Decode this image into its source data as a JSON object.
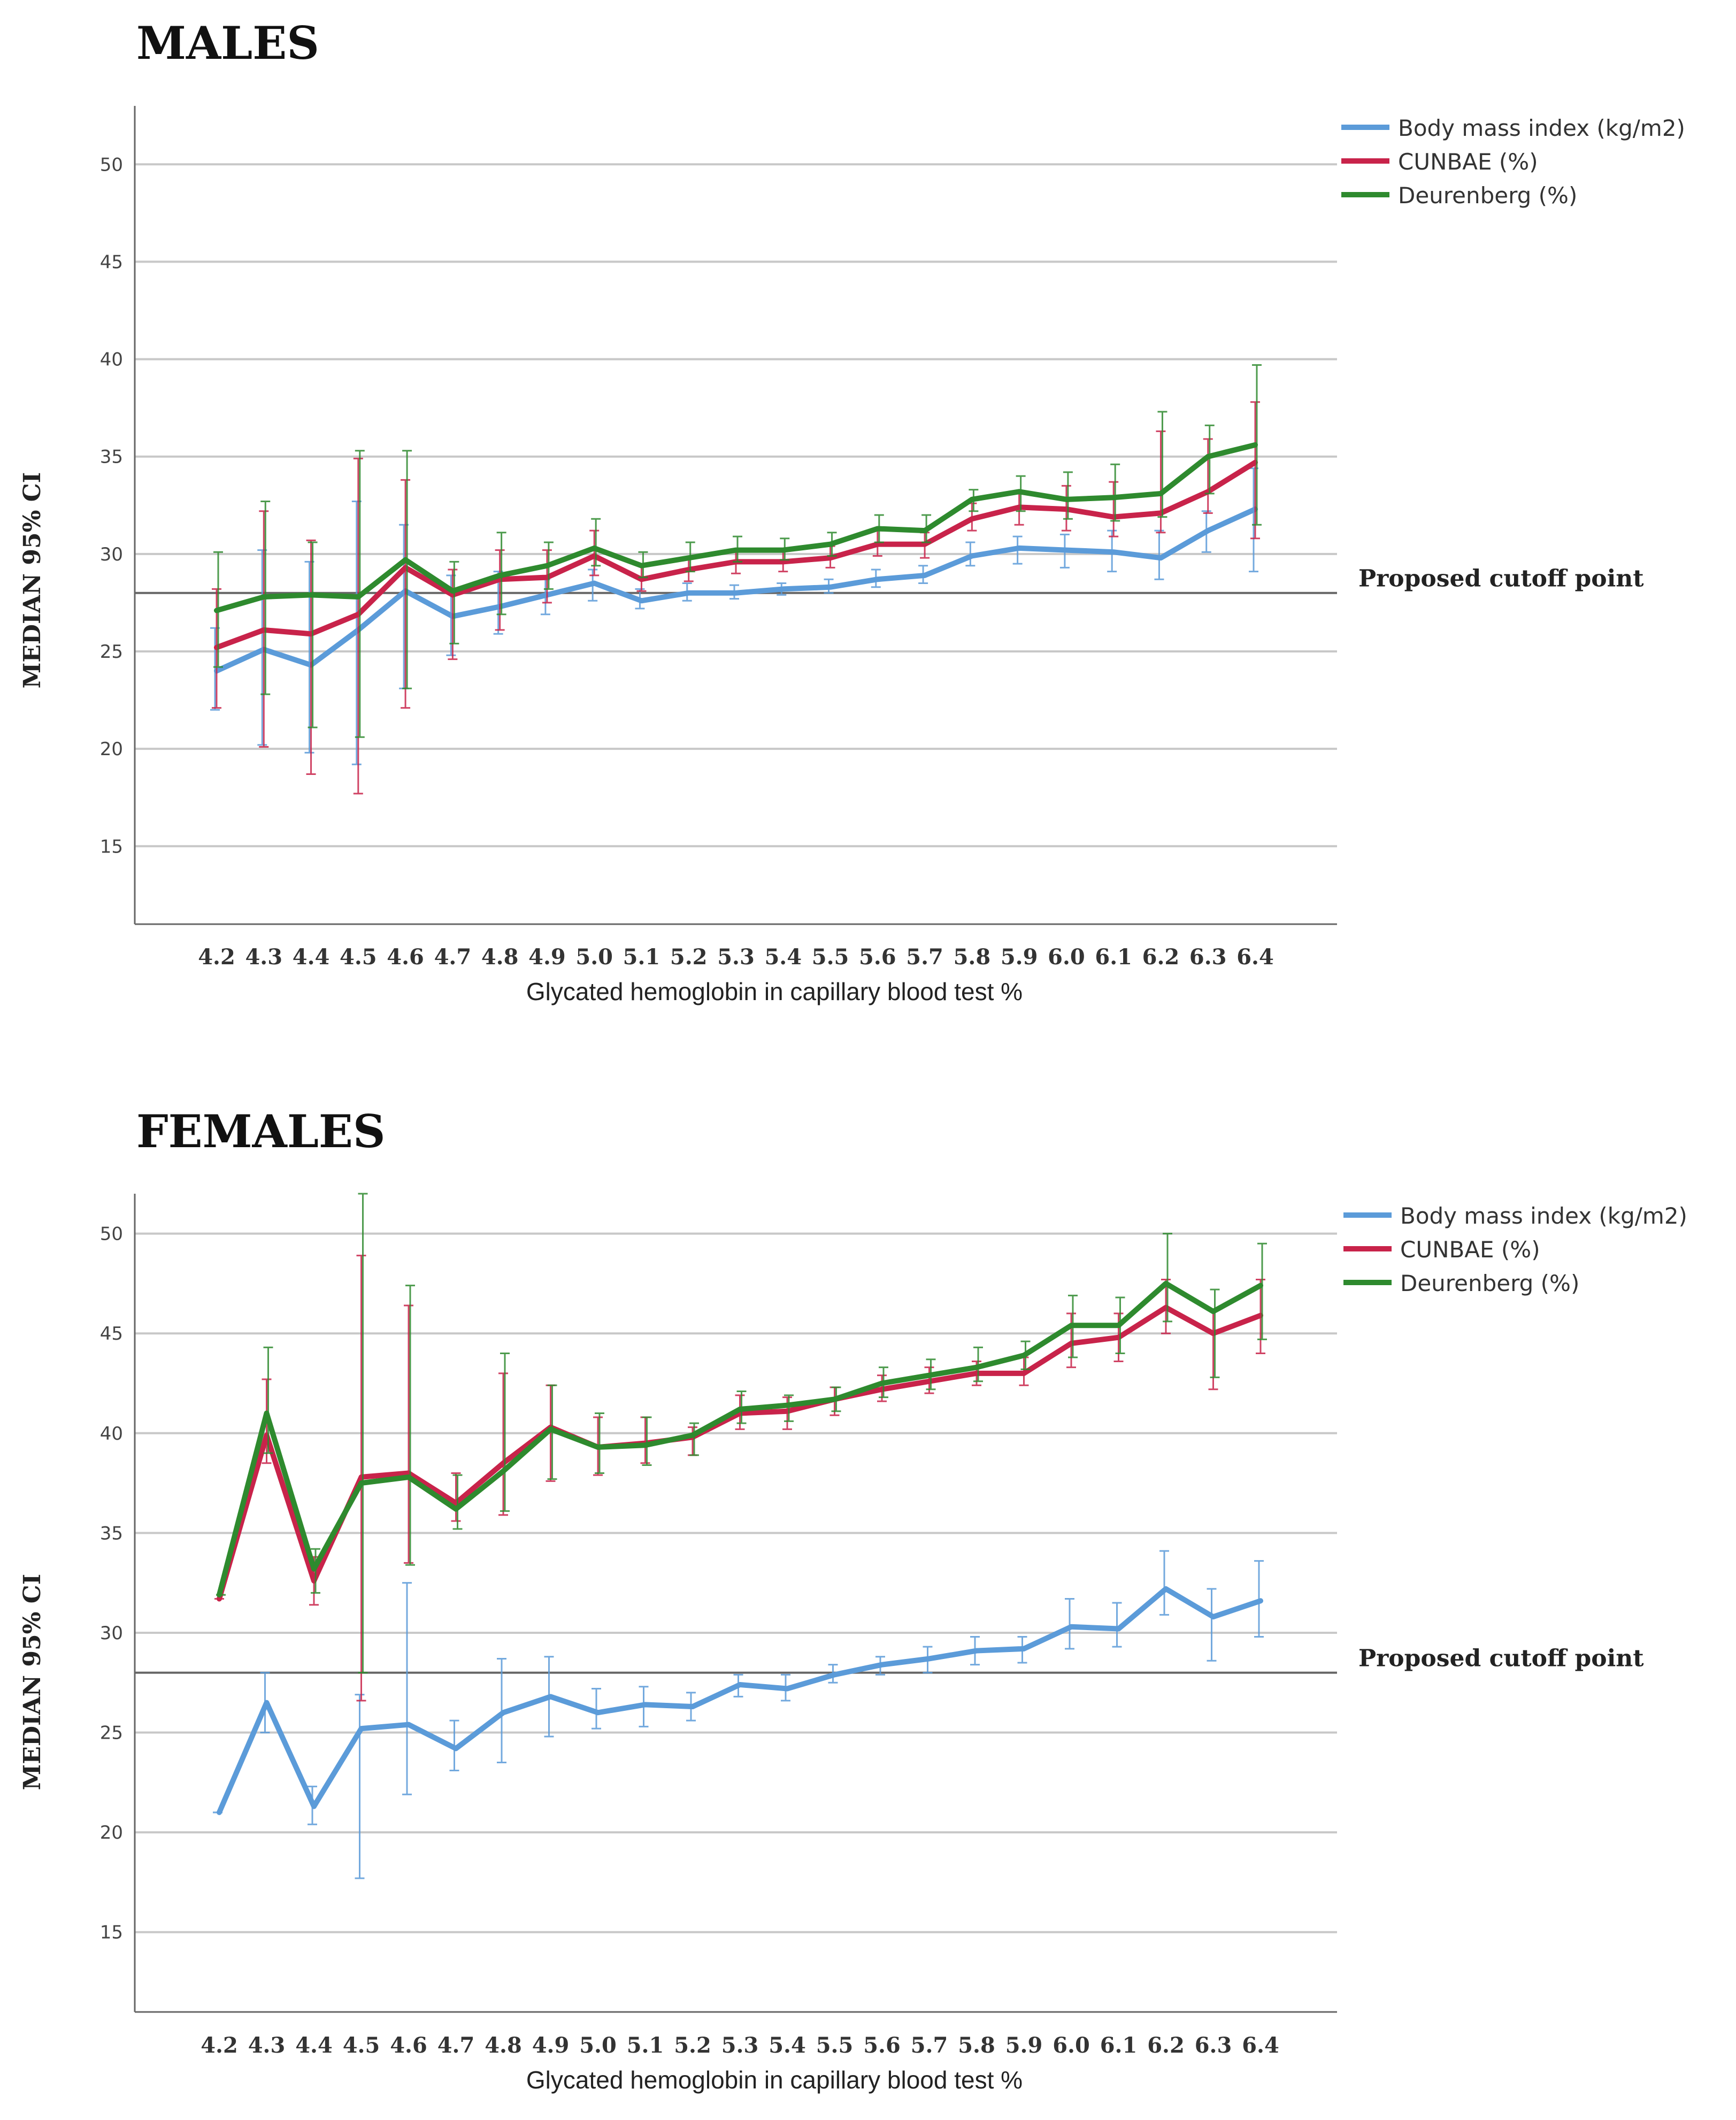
{
  "chart_data": [
    {
      "type": "line",
      "title": "MALES",
      "xlabel": "Glycated hemoglobin in capillary blood test %",
      "ylabel": "MEDIAN 95% CI",
      "ylim": [
        11,
        53
      ],
      "yticks": [
        15,
        20,
        25,
        30,
        35,
        40,
        45,
        50
      ],
      "legend_position": "top-right",
      "x": [
        "4.2",
        "4.3",
        "4.4",
        "4.5",
        "4.6",
        "4.7",
        "4.8",
        "4.9",
        "5.0",
        "5.1",
        "5.2",
        "5.3",
        "5.4",
        "5.5",
        "5.6",
        "5.7",
        "5.8",
        "5.9",
        "6.0",
        "6.1",
        "6.2",
        "6.3",
        "6.4"
      ],
      "cutoff": {
        "value": 28,
        "label": "Proposed cutoff point"
      },
      "series": [
        {
          "name": "Body mass index (kg/m2)",
          "color": "#5b9bd9",
          "values": [
            24.0,
            25.1,
            24.3,
            26.1,
            28.1,
            26.8,
            27.3,
            27.9,
            28.5,
            27.6,
            28.0,
            28.0,
            28.2,
            28.3,
            28.7,
            28.9,
            29.9,
            30.3,
            30.2,
            30.1,
            29.8,
            31.2,
            32.3
          ],
          "lower": [
            22.0,
            20.2,
            19.8,
            19.2,
            23.1,
            24.8,
            25.9,
            26.9,
            27.6,
            27.2,
            27.6,
            27.7,
            27.9,
            28.0,
            28.3,
            28.5,
            29.4,
            29.5,
            29.3,
            29.1,
            28.7,
            30.1,
            29.1
          ],
          "upper": [
            26.2,
            30.2,
            29.6,
            32.7,
            31.5,
            28.9,
            29.1,
            28.7,
            29.2,
            28.2,
            28.5,
            28.4,
            28.5,
            28.7,
            29.2,
            29.4,
            30.6,
            30.9,
            31.0,
            31.2,
            31.2,
            32.2,
            34.4
          ]
        },
        {
          "name": "CUNBAE (%)",
          "color": "#c8234a",
          "values": [
            25.2,
            26.1,
            25.9,
            26.9,
            29.3,
            27.9,
            28.7,
            28.8,
            29.9,
            28.7,
            29.2,
            29.6,
            29.6,
            29.8,
            30.5,
            30.5,
            31.8,
            32.4,
            32.3,
            31.9,
            32.1,
            33.2,
            34.7
          ],
          "lower": [
            22.1,
            20.1,
            18.7,
            17.7,
            22.1,
            24.6,
            26.1,
            27.5,
            28.9,
            28.1,
            28.6,
            29.0,
            29.1,
            29.3,
            29.9,
            29.8,
            31.2,
            31.5,
            31.2,
            30.9,
            31.1,
            32.1,
            30.8
          ],
          "upper": [
            28.2,
            32.2,
            30.7,
            34.9,
            33.8,
            29.2,
            30.2,
            30.2,
            31.2,
            29.4,
            29.8,
            30.2,
            30.2,
            30.4,
            31.2,
            31.1,
            32.6,
            33.2,
            33.5,
            33.7,
            36.3,
            35.9,
            37.8
          ]
        },
        {
          "name": "Deurenberg (%)",
          "color": "#2e8a2e",
          "values": [
            27.1,
            27.8,
            27.9,
            27.8,
            29.7,
            28.1,
            28.9,
            29.4,
            30.3,
            29.4,
            29.8,
            30.2,
            30.2,
            30.5,
            31.3,
            31.2,
            32.8,
            33.2,
            32.8,
            32.9,
            33.1,
            35.0,
            35.6
          ],
          "lower": [
            24.2,
            22.8,
            21.1,
            20.6,
            23.1,
            25.4,
            26.9,
            28.2,
            29.4,
            28.8,
            29.1,
            29.6,
            29.7,
            29.9,
            30.6,
            30.6,
            32.2,
            32.2,
            31.8,
            31.7,
            31.9,
            33.1,
            31.5
          ],
          "upper": [
            30.1,
            32.7,
            30.6,
            35.3,
            35.3,
            29.6,
            31.1,
            30.6,
            31.8,
            30.1,
            30.6,
            30.9,
            30.8,
            31.1,
            32.0,
            32.0,
            33.3,
            34.0,
            34.2,
            34.6,
            37.3,
            36.6,
            39.7
          ]
        }
      ]
    },
    {
      "type": "line",
      "title": "FEMALES",
      "xlabel": "Glycated hemoglobin in capillary blood test %",
      "ylabel": "MEDIAN 95% CI",
      "ylim": [
        11,
        52
      ],
      "yticks": [
        15,
        20,
        25,
        30,
        35,
        40,
        45,
        50
      ],
      "legend_position": "top-right",
      "x": [
        "4.2",
        "4.3",
        "4.4",
        "4.5",
        "4.6",
        "4.7",
        "4.8",
        "4.9",
        "5.0",
        "5.1",
        "5.2",
        "5.3",
        "5.4",
        "5.5",
        "5.6",
        "5.7",
        "5.8",
        "5.9",
        "6.0",
        "6.1",
        "6.2",
        "6.3",
        "6.4"
      ],
      "cutoff": {
        "value": 28,
        "label": "Proposed cutoff point"
      },
      "series": [
        {
          "name": "Body mass index (kg/m2)",
          "color": "#5b9bd9",
          "values": [
            21.0,
            26.5,
            21.3,
            25.2,
            25.4,
            24.2,
            26.0,
            26.8,
            26.0,
            26.4,
            26.3,
            27.4,
            27.2,
            27.9,
            28.4,
            28.7,
            29.1,
            29.2,
            30.3,
            30.2,
            32.2,
            30.8,
            31.6
          ],
          "lower": [
            21.0,
            25.0,
            20.4,
            17.7,
            21.9,
            23.1,
            23.5,
            24.8,
            25.2,
            25.3,
            25.6,
            26.8,
            26.6,
            27.5,
            27.9,
            28.0,
            28.4,
            28.5,
            29.2,
            29.3,
            30.9,
            28.6,
            29.8
          ],
          "upper": [
            21.0,
            28.0,
            22.3,
            26.9,
            32.5,
            25.6,
            28.7,
            28.8,
            27.2,
            27.3,
            27.0,
            27.9,
            27.9,
            28.4,
            28.8,
            29.3,
            29.8,
            29.8,
            31.7,
            31.5,
            34.1,
            32.2,
            33.6
          ]
        },
        {
          "name": "CUNBAE (%)",
          "color": "#c8234a",
          "values": [
            31.7,
            39.9,
            32.6,
            37.8,
            38.0,
            36.5,
            38.5,
            40.3,
            39.3,
            39.5,
            39.8,
            41.0,
            41.1,
            41.7,
            42.2,
            42.6,
            43.0,
            43.0,
            44.5,
            44.8,
            46.3,
            45.0,
            45.9
          ],
          "lower": [
            31.7,
            38.5,
            31.4,
            26.6,
            33.5,
            35.6,
            35.9,
            37.6,
            37.9,
            38.5,
            38.9,
            40.2,
            40.2,
            40.9,
            41.6,
            42.0,
            42.4,
            42.4,
            43.3,
            43.6,
            45.0,
            42.2,
            44.0
          ],
          "upper": [
            31.7,
            42.7,
            33.8,
            48.9,
            46.4,
            38.0,
            43.0,
            42.4,
            40.8,
            40.8,
            40.3,
            41.9,
            41.8,
            42.3,
            42.9,
            43.3,
            43.6,
            43.8,
            46.0,
            46.0,
            47.7,
            46.2,
            47.7
          ]
        },
        {
          "name": "Deurenberg (%)",
          "color": "#2e8a2e",
          "values": [
            31.9,
            41.0,
            33.2,
            37.5,
            37.8,
            36.2,
            38.1,
            40.2,
            39.3,
            39.4,
            39.9,
            41.2,
            41.4,
            41.7,
            42.5,
            42.9,
            43.3,
            43.9,
            45.4,
            45.4,
            47.5,
            46.1,
            47.4
          ],
          "lower": [
            31.9,
            39.0,
            32.0,
            28.0,
            33.4,
            35.2,
            36.1,
            37.7,
            38.0,
            38.4,
            38.9,
            40.5,
            40.6,
            41.1,
            41.8,
            42.2,
            42.6,
            43.2,
            43.8,
            44.0,
            45.6,
            42.8,
            44.7
          ],
          "upper": [
            31.9,
            44.3,
            34.2,
            52.0,
            47.4,
            37.9,
            44.0,
            42.4,
            41.0,
            40.8,
            40.5,
            42.1,
            41.9,
            42.3,
            43.3,
            43.7,
            44.3,
            44.6,
            46.9,
            46.8,
            50.0,
            47.2,
            49.5
          ]
        }
      ]
    }
  ]
}
